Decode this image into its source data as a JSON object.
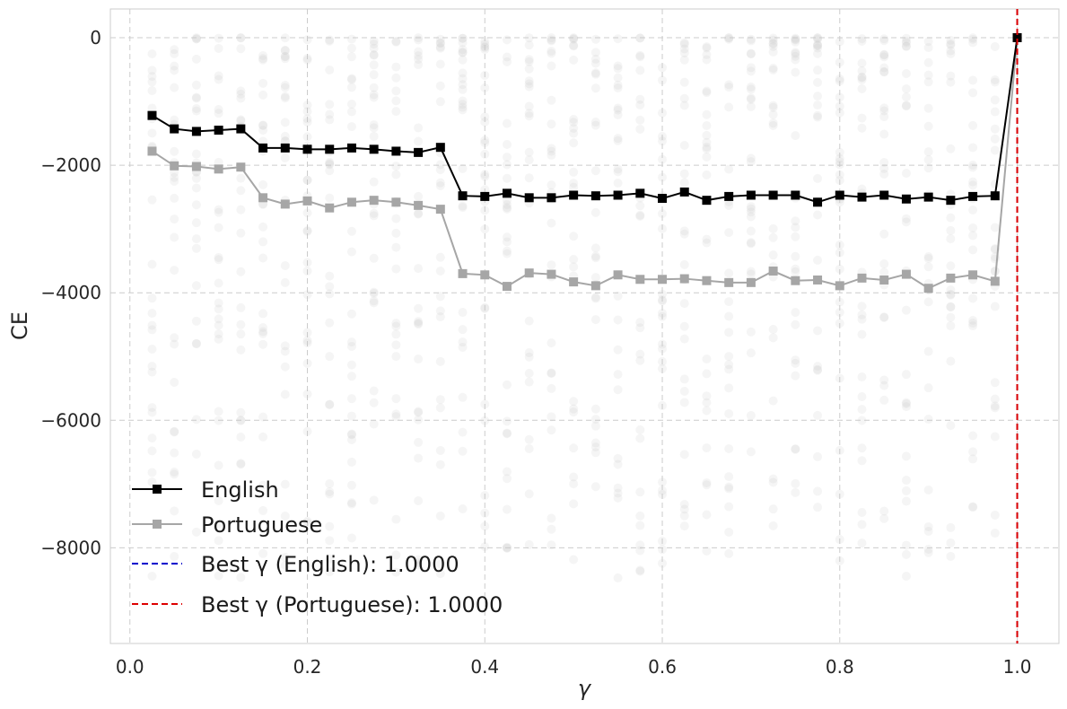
{
  "chart_data": {
    "type": "line",
    "title": "",
    "xlabel": "γ",
    "ylabel": "CE",
    "xlim": [
      -0.022,
      1.047
    ],
    "ylim": [
      -9500,
      450
    ],
    "grid": true,
    "legend_placement": "lower-left",
    "xticks": [
      {
        "value": 0.0,
        "label": "0.0"
      },
      {
        "value": 0.2,
        "label": "0.2"
      },
      {
        "value": 0.4,
        "label": "0.4"
      },
      {
        "value": 0.6,
        "label": "0.6"
      },
      {
        "value": 0.8,
        "label": "0.8"
      },
      {
        "value": 1.0,
        "label": "1.0"
      }
    ],
    "yticks": [
      {
        "value": 0,
        "label": "0"
      },
      {
        "value": -2000,
        "label": "−2000"
      },
      {
        "value": -4000,
        "label": "−4000"
      },
      {
        "value": -6000,
        "label": "−6000"
      },
      {
        "value": -8000,
        "label": "−8000"
      }
    ],
    "x": [
      0.025,
      0.05,
      0.075,
      0.1,
      0.125,
      0.15,
      0.175,
      0.2,
      0.225,
      0.25,
      0.275,
      0.3,
      0.325,
      0.35,
      0.375,
      0.4,
      0.425,
      0.45,
      0.475,
      0.5,
      0.525,
      0.55,
      0.575,
      0.6,
      0.625,
      0.65,
      0.675,
      0.7,
      0.725,
      0.75,
      0.775,
      0.8,
      0.825,
      0.85,
      0.875,
      0.9,
      0.925,
      0.95,
      0.975,
      1.0
    ],
    "series": [
      {
        "name": "English",
        "color": "#000000",
        "marker": "square",
        "values": [
          -1220,
          -1430,
          -1470,
          -1450,
          -1430,
          -1730,
          -1730,
          -1750,
          -1750,
          -1730,
          -1750,
          -1780,
          -1800,
          -1720,
          -2480,
          -2490,
          -2440,
          -2510,
          -2510,
          -2470,
          -2480,
          -2470,
          -2440,
          -2520,
          -2420,
          -2550,
          -2490,
          -2470,
          -2470,
          -2470,
          -2580,
          -2470,
          -2500,
          -2470,
          -2530,
          -2500,
          -2550,
          -2490,
          -2480,
          0
        ]
      },
      {
        "name": "Portuguese",
        "color": "#a6a6a6",
        "marker": "square",
        "values": [
          -1780,
          -2010,
          -2020,
          -2060,
          -2030,
          -2510,
          -2610,
          -2560,
          -2670,
          -2580,
          -2550,
          -2580,
          -2630,
          -2690,
          -3700,
          -3720,
          -3900,
          -3690,
          -3710,
          -3830,
          -3890,
          -3720,
          -3790,
          -3790,
          -3780,
          -3810,
          -3840,
          -3840,
          -3660,
          -3810,
          -3800,
          -3890,
          -3770,
          -3800,
          -3710,
          -3930,
          -3770,
          -3720,
          -3820,
          0
        ]
      }
    ],
    "reference_lines": [
      {
        "label": "Best γ (English): 1.0000",
        "x": 1.0,
        "color": "#0000cc",
        "style": "dashed"
      },
      {
        "label": "Best γ (Portuguese): 1.0000",
        "x": 1.0,
        "color": "#dd0000",
        "style": "dashed"
      }
    ],
    "background_scatter": {
      "color": "#c8c8c8",
      "opacity": 0.18,
      "y_range": [
        -8500,
        0
      ]
    }
  }
}
